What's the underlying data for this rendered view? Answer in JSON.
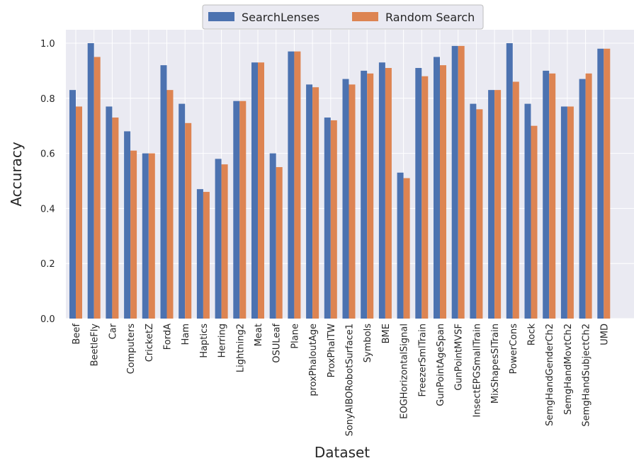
{
  "chart_data": {
    "type": "bar",
    "xlabel": "Dataset",
    "ylabel": "Accuracy",
    "ylim": [
      0,
      1.05
    ],
    "yticks": [
      "0.0",
      "0.2",
      "0.4",
      "0.6",
      "0.8",
      "1.0"
    ],
    "grid": true,
    "legend": "top-center",
    "categories": [
      "Beef",
      "BeetleFly",
      "Car",
      "Computers",
      "CricketZ",
      "FordA",
      "Ham",
      "Haptics",
      "Herring",
      "Lightning2",
      "Meat",
      "OSULeaf",
      "Plane",
      "proxPhaloutAge",
      "ProxPhalTW",
      "SonyAIBORobotSurface1",
      "Symbols",
      "BME",
      "EOGHorizontalSignal",
      "FreezerSmlTrain",
      "GunPointAgeSpan",
      "GunPointMVSF",
      "InsectEPGSmallTrain",
      "MixShapesSlTrain",
      "PowerCons",
      "Rock",
      "SemgHandGenderCh2",
      "SemgHandMovtCh2",
      "SemgHandSubjectCh2",
      "UMD"
    ],
    "series": [
      {
        "name": "SearchLenses",
        "color": "#4c72b0",
        "values": [
          0.83,
          1.0,
          0.77,
          0.68,
          0.6,
          0.92,
          0.78,
          0.47,
          0.58,
          0.79,
          0.93,
          0.6,
          0.97,
          0.85,
          0.73,
          0.87,
          0.9,
          0.93,
          0.53,
          0.91,
          0.95,
          0.99,
          0.78,
          0.83,
          1.0,
          0.78,
          0.9,
          0.77,
          0.87,
          0.98
        ]
      },
      {
        "name": "Random Search",
        "color": "#dd8452",
        "values": [
          0.77,
          0.95,
          0.73,
          0.61,
          0.6,
          0.83,
          0.71,
          0.46,
          0.56,
          0.79,
          0.93,
          0.55,
          0.97,
          0.84,
          0.72,
          0.85,
          0.89,
          0.91,
          0.51,
          0.88,
          0.92,
          0.99,
          0.76,
          0.83,
          0.86,
          0.7,
          0.89,
          0.77,
          0.89,
          0.98
        ]
      }
    ]
  },
  "colors": {
    "plot_background": "#eaeaf2",
    "grid": "#ffffff"
  }
}
